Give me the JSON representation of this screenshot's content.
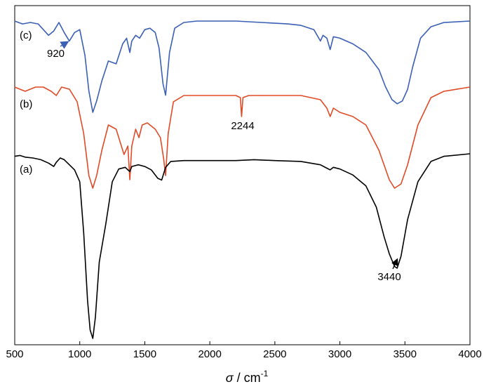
{
  "chart_data": {
    "type": "line",
    "title": "",
    "xlabel": "σ / cm",
    "xlabel_symbol": "σ",
    "xlabel_sep": " / cm",
    "xlabel_sup": "-1",
    "ylabel": "",
    "xlim": [
      500,
      4000
    ],
    "xticks": [
      "500",
      "1000",
      "1500",
      "2000",
      "2500",
      "3000",
      "3500",
      "4000"
    ],
    "y_axis": "transmittance (arbitrary, offset traces, no scale)",
    "grid": false,
    "legend": "none",
    "series": [
      {
        "name": "(c)",
        "color": "#3a5fb5",
        "x": [
          500,
          560,
          620,
          680,
          720,
          760,
          800,
          840,
          880,
          920,
          960,
          1000,
          1040,
          1070,
          1100,
          1130,
          1170,
          1220,
          1280,
          1330,
          1360,
          1385,
          1400,
          1430,
          1460,
          1500,
          1540,
          1580,
          1610,
          1640,
          1660,
          1690,
          1730,
          1800,
          1900,
          2000,
          2200,
          2400,
          2600,
          2700,
          2800,
          2850,
          2870,
          2900,
          2925,
          2950,
          3000,
          3100,
          3200,
          3300,
          3350,
          3400,
          3440,
          3480,
          3520,
          3560,
          3620,
          3700,
          3800,
          4000
        ],
        "y": [
          94,
          92,
          93,
          92,
          88,
          84,
          87,
          93,
          86,
          80,
          86,
          88,
          70,
          45,
          30,
          38,
          52,
          66,
          64,
          78,
          82,
          72,
          80,
          84,
          82,
          88,
          89,
          86,
          75,
          50,
          42,
          72,
          89,
          93,
          94,
          94,
          94,
          93,
          92,
          91,
          88,
          80,
          84,
          82,
          74,
          83,
          82,
          78,
          72,
          60,
          48,
          39,
          36,
          38,
          46,
          62,
          82,
          90,
          93,
          94
        ]
      },
      {
        "name": "(b)",
        "color": "#e04a26",
        "x": [
          500,
          580,
          660,
          720,
          780,
          820,
          860,
          920,
          980,
          1030,
          1070,
          1100,
          1130,
          1170,
          1220,
          1280,
          1340,
          1370,
          1385,
          1400,
          1430,
          1455,
          1480,
          1520,
          1580,
          1620,
          1645,
          1660,
          1680,
          1720,
          1800,
          2000,
          2200,
          2235,
          2244,
          2255,
          2300,
          2500,
          2700,
          2850,
          2900,
          2925,
          2950,
          3000,
          3100,
          3200,
          3300,
          3380,
          3420,
          3470,
          3520,
          3600,
          3700,
          3800,
          4000
        ],
        "y": [
          62,
          60,
          62,
          62,
          60,
          58,
          62,
          61,
          55,
          40,
          20,
          14,
          20,
          32,
          44,
          42,
          30,
          34,
          18,
          34,
          42,
          38,
          44,
          45,
          42,
          38,
          28,
          20,
          40,
          55,
          58,
          58,
          58,
          57,
          48,
          57,
          58,
          58,
          58,
          56,
          52,
          48,
          52,
          50,
          48,
          44,
          32,
          18,
          14,
          16,
          25,
          44,
          57,
          60,
          62
        ]
      },
      {
        "name": "(a)",
        "color": "#000000",
        "x": [
          500,
          540,
          580,
          640,
          700,
          760,
          800,
          820,
          850,
          880,
          920,
          960,
          1000,
          1030,
          1060,
          1080,
          1100,
          1120,
          1150,
          1200,
          1250,
          1300,
          1350,
          1370,
          1385,
          1400,
          1450,
          1500,
          1550,
          1600,
          1630,
          1660,
          1700,
          1800,
          2000,
          2200,
          2340,
          2500,
          2700,
          2850,
          2900,
          2925,
          2950,
          3000,
          3100,
          3200,
          3280,
          3340,
          3380,
          3420,
          3440,
          3470,
          3520,
          3600,
          3700,
          3800,
          4000
        ],
        "y": [
          40,
          41,
          39,
          38,
          36,
          32,
          28,
          33,
          38,
          36,
          30,
          24,
          10,
          -50,
          -130,
          -165,
          -175,
          -150,
          -85,
          -40,
          10,
          25,
          27,
          24,
          22,
          28,
          30,
          28,
          24,
          14,
          12,
          27,
          34,
          35,
          35,
          35,
          36,
          35,
          34,
          30,
          26,
          24,
          27,
          25,
          18,
          5,
          -20,
          -55,
          -75,
          -90,
          -92,
          -78,
          -35,
          10,
          34,
          40,
          43
        ]
      }
    ],
    "annotations": [
      {
        "label": "(c)",
        "kind": "series-label"
      },
      {
        "label": "(b)",
        "kind": "series-label"
      },
      {
        "label": "(a)",
        "kind": "series-label"
      },
      {
        "label": "920",
        "x": 920,
        "kind": "arrow-peak"
      },
      {
        "label": "2244",
        "x": 2244,
        "kind": "peak"
      },
      {
        "label": "3440",
        "x": 3440,
        "kind": "arrow-peak"
      }
    ]
  }
}
